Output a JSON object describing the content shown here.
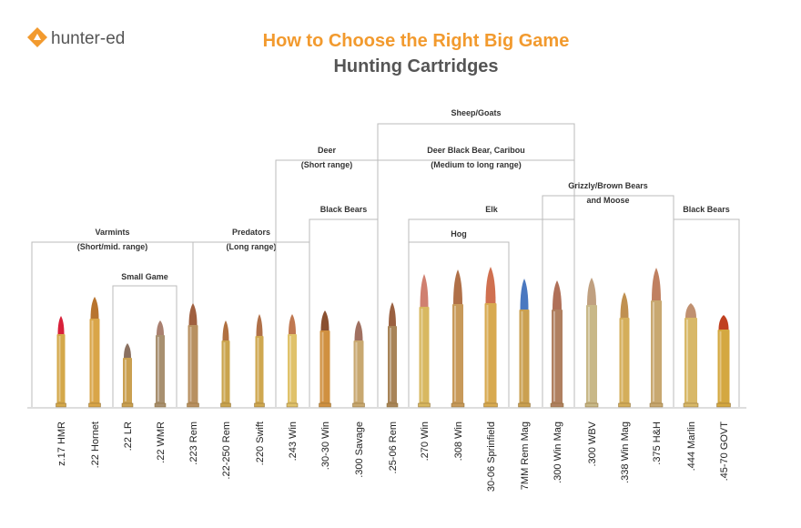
{
  "logo": "hunter-ed",
  "title": {
    "line1": "How to Choose the Right Big Game",
    "line2": "Hunting Cartridges"
  },
  "groups": [
    {
      "label": "Varmints",
      "sublabel": "(Short/mid. range)"
    },
    {
      "label": "Small Game"
    },
    {
      "label": "Predators",
      "sublabel": "(Long range)"
    },
    {
      "label": "Deer",
      "sublabel": "(Short range)"
    },
    {
      "label": "Black Bears"
    },
    {
      "label": "Sheep/Goats"
    },
    {
      "label": "Deer Black Bear, Caribou",
      "sublabel": "(Medium to long range)"
    },
    {
      "label": "Elk"
    },
    {
      "label": "Hog"
    },
    {
      "label": "Grizzly/Brown Bears",
      "sublabel": "and Moose"
    },
    {
      "label": "Black Bears"
    }
  ],
  "cartridges": [
    "z.17 HMR",
    ".22 Hornet",
    ".22 LR",
    ".22 WMR",
    ".223 Rem",
    ".22-250 Rem",
    ".220 Swift",
    ".243 Win",
    ".30-30 Win",
    ".300 Savage",
    ".25-06 Rem",
    ".270 Win",
    ".308 Win",
    "30-06 Sprinfield",
    "7MM Rem Mag",
    ".300 Win Mag",
    ".300 WBV",
    ".338 Win Mag",
    ".375 H&H",
    ".444 Marlin",
    ".45-70 GOVT"
  ]
}
